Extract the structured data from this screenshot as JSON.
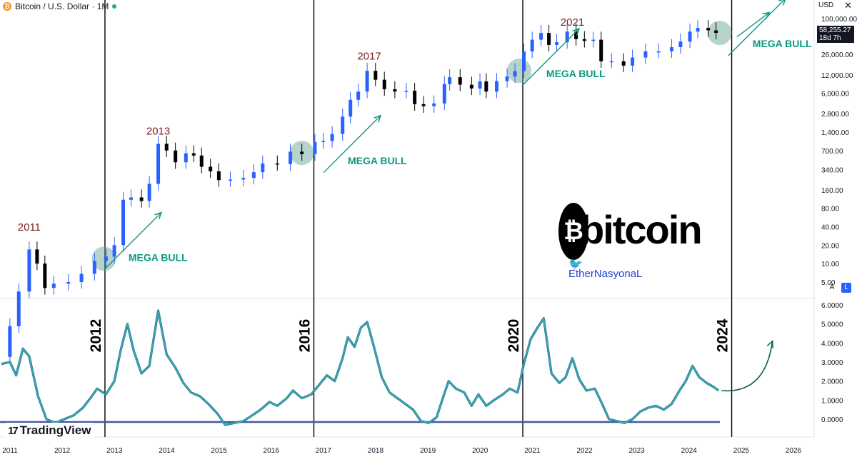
{
  "header": {
    "symbol": "Bitcoin / U.S. Dollar · 1M",
    "coin_glyph": "₿",
    "currency": "USD",
    "close_glyph": "✕",
    "price": "58,255.27",
    "countdown": "18d 7h"
  },
  "scale_buttons": {
    "auto": "A",
    "log": "L"
  },
  "branding": {
    "tradingview": "TradingView",
    "tradingview_mark": "17",
    "bitcoin_glyph": "₿",
    "bitcoin_word": "bitcoin",
    "twitter_glyph": "🐦",
    "author": "EtherNasyonaL"
  },
  "colors": {
    "up": "#2962ff",
    "down": "#000000",
    "annotation_green": "#089981",
    "year_label": "#7b1f24",
    "oscillator": "#3aa6b4",
    "zero_line": "#4457a6",
    "circle_fill": "#5f9f8f"
  },
  "chart_data": {
    "type": "candlestick",
    "price_axis": {
      "scale": "log",
      "ticks": [
        "100,000.00",
        "58,255.27",
        "26,000.00",
        "12,000.00",
        "6,000.00",
        "2,800.00",
        "1,400.00",
        "700.00",
        "340.00",
        "160.00",
        "80.00",
        "40.00",
        "20.00",
        "10.00",
        "5.00"
      ]
    },
    "oscillator_axis": {
      "ticks": [
        "6.0000",
        "5.0000",
        "4.0000",
        "3.0000",
        "2.0000",
        "1.0000",
        "0.0000"
      ],
      "ylim": [
        0,
        6
      ]
    },
    "x_axis": {
      "ticks": [
        "2011",
        "2012",
        "2013",
        "2014",
        "2015",
        "2016",
        "2017",
        "2018",
        "2019",
        "2020",
        "2021",
        "2022",
        "2023",
        "2024",
        "2025",
        "2026"
      ]
    },
    "halving_lines": [
      "2012",
      "2016",
      "2020",
      "2024"
    ],
    "peak_labels": [
      {
        "label": "2011",
        "date": 2011.45,
        "price": 31
      },
      {
        "label": "2013",
        "date": 2013.92,
        "price": 1150
      },
      {
        "label": "2017",
        "date": 2017.96,
        "price": 19000
      },
      {
        "label": "2021",
        "date": 2021.85,
        "price": 68000
      }
    ],
    "annotations": [
      {
        "text": "MEGA BULL",
        "date": 2013.35,
        "price": 11
      },
      {
        "text": "MEGA BULL",
        "date": 2017.55,
        "price": 420
      },
      {
        "text": "MEGA BULL",
        "date": 2021.35,
        "price": 11000
      },
      {
        "text": "MEGA BULL",
        "date": 2025.3,
        "price": 34000
      }
    ],
    "circles": [
      {
        "date": 2012.88,
        "price": 12
      },
      {
        "date": 2016.67,
        "price": 640
      },
      {
        "date": 2020.83,
        "price": 14000
      },
      {
        "date": 2024.67,
        "price": 58000
      }
    ],
    "price_series": [
      {
        "date": 2010.92,
        "price": 0.3
      },
      {
        "date": 2011.08,
        "price": 0.95
      },
      {
        "date": 2011.25,
        "price": 3.5
      },
      {
        "date": 2011.45,
        "price": 17
      },
      {
        "date": 2011.6,
        "price": 10
      },
      {
        "date": 2011.75,
        "price": 4
      },
      {
        "date": 2011.92,
        "price": 4.7
      },
      {
        "date": 2012.2,
        "price": 5
      },
      {
        "date": 2012.45,
        "price": 6.8
      },
      {
        "date": 2012.7,
        "price": 11
      },
      {
        "date": 2012.92,
        "price": 13
      },
      {
        "date": 2013.08,
        "price": 20
      },
      {
        "date": 2013.25,
        "price": 110
      },
      {
        "date": 2013.4,
        "price": 120
      },
      {
        "date": 2013.6,
        "price": 105
      },
      {
        "date": 2013.75,
        "price": 200
      },
      {
        "date": 2013.92,
        "price": 900
      },
      {
        "date": 2014.08,
        "price": 700
      },
      {
        "date": 2014.25,
        "price": 450
      },
      {
        "date": 2014.45,
        "price": 630
      },
      {
        "date": 2014.6,
        "price": 580
      },
      {
        "date": 2014.75,
        "price": 380
      },
      {
        "date": 2014.92,
        "price": 320
      },
      {
        "date": 2015.08,
        "price": 230
      },
      {
        "date": 2015.3,
        "price": 235
      },
      {
        "date": 2015.55,
        "price": 250
      },
      {
        "date": 2015.75,
        "price": 310
      },
      {
        "date": 2015.92,
        "price": 430
      },
      {
        "date": 2016.2,
        "price": 420
      },
      {
        "date": 2016.45,
        "price": 670
      },
      {
        "date": 2016.67,
        "price": 610
      },
      {
        "date": 2016.92,
        "price": 960
      },
      {
        "date": 2017.08,
        "price": 1000
      },
      {
        "date": 2017.25,
        "price": 1300
      },
      {
        "date": 2017.45,
        "price": 2500
      },
      {
        "date": 2017.6,
        "price": 4700
      },
      {
        "date": 2017.75,
        "price": 6400
      },
      {
        "date": 2017.92,
        "price": 14000
      },
      {
        "date": 2018.08,
        "price": 10000
      },
      {
        "date": 2018.25,
        "price": 7000
      },
      {
        "date": 2018.45,
        "price": 6400
      },
      {
        "date": 2018.67,
        "price": 6600
      },
      {
        "date": 2018.83,
        "price": 4000
      },
      {
        "date": 2019.0,
        "price": 3700
      },
      {
        "date": 2019.2,
        "price": 4100
      },
      {
        "date": 2019.4,
        "price": 8500
      },
      {
        "date": 2019.5,
        "price": 11000
      },
      {
        "date": 2019.7,
        "price": 8300
      },
      {
        "date": 2019.92,
        "price": 7200
      },
      {
        "date": 2020.08,
        "price": 9400
      },
      {
        "date": 2020.2,
        "price": 6400
      },
      {
        "date": 2020.4,
        "price": 9500
      },
      {
        "date": 2020.6,
        "price": 11300
      },
      {
        "date": 2020.75,
        "price": 13800
      },
      {
        "date": 2020.92,
        "price": 29000
      },
      {
        "date": 2021.08,
        "price": 45000
      },
      {
        "date": 2021.25,
        "price": 58000
      },
      {
        "date": 2021.4,
        "price": 37000
      },
      {
        "date": 2021.55,
        "price": 41000
      },
      {
        "date": 2021.75,
        "price": 61000
      },
      {
        "date": 2021.92,
        "price": 46000
      },
      {
        "date": 2022.08,
        "price": 43000
      },
      {
        "date": 2022.25,
        "price": 45000
      },
      {
        "date": 2022.4,
        "price": 20000
      },
      {
        "date": 2022.6,
        "price": 20000
      },
      {
        "date": 2022.83,
        "price": 17000
      },
      {
        "date": 2023.0,
        "price": 23000
      },
      {
        "date": 2023.25,
        "price": 29000
      },
      {
        "date": 2023.5,
        "price": 29000
      },
      {
        "date": 2023.75,
        "price": 34000
      },
      {
        "date": 2023.92,
        "price": 42000
      },
      {
        "date": 2024.1,
        "price": 61000
      },
      {
        "date": 2024.25,
        "price": 70000
      },
      {
        "date": 2024.45,
        "price": 64000
      },
      {
        "date": 2024.6,
        "price": 58255
      }
    ],
    "oscillator_series": [
      {
        "date": 2010.92,
        "value": 2.9
      },
      {
        "date": 2011.08,
        "value": 3.0
      },
      {
        "date": 2011.2,
        "value": 2.3
      },
      {
        "date": 2011.33,
        "value": 3.7
      },
      {
        "date": 2011.45,
        "value": 3.3
      },
      {
        "date": 2011.62,
        "value": 1.2
      },
      {
        "date": 2011.78,
        "value": 0.0
      },
      {
        "date": 2011.95,
        "value": -0.2
      },
      {
        "date": 2012.12,
        "value": 0.0
      },
      {
        "date": 2012.3,
        "value": 0.2
      },
      {
        "date": 2012.48,
        "value": 0.6
      },
      {
        "date": 2012.62,
        "value": 1.1
      },
      {
        "date": 2012.75,
        "value": 1.6
      },
      {
        "date": 2012.92,
        "value": 1.3
      },
      {
        "date": 2013.08,
        "value": 2.0
      },
      {
        "date": 2013.2,
        "value": 3.6
      },
      {
        "date": 2013.33,
        "value": 5.0
      },
      {
        "date": 2013.45,
        "value": 3.6
      },
      {
        "date": 2013.6,
        "value": 2.4
      },
      {
        "date": 2013.75,
        "value": 2.8
      },
      {
        "date": 2013.92,
        "value": 5.7
      },
      {
        "date": 2014.08,
        "value": 3.4
      },
      {
        "date": 2014.25,
        "value": 2.7
      },
      {
        "date": 2014.4,
        "value": 1.9
      },
      {
        "date": 2014.55,
        "value": 1.4
      },
      {
        "date": 2014.72,
        "value": 1.2
      },
      {
        "date": 2014.88,
        "value": 0.8
      },
      {
        "date": 2015.05,
        "value": 0.3
      },
      {
        "date": 2015.2,
        "value": -0.3
      },
      {
        "date": 2015.38,
        "value": -0.2
      },
      {
        "date": 2015.55,
        "value": -0.1
      },
      {
        "date": 2015.72,
        "value": 0.2
      },
      {
        "date": 2015.88,
        "value": 0.5
      },
      {
        "date": 2016.05,
        "value": 0.9
      },
      {
        "date": 2016.2,
        "value": 0.7
      },
      {
        "date": 2016.38,
        "value": 1.1
      },
      {
        "date": 2016.5,
        "value": 1.5
      },
      {
        "date": 2016.67,
        "value": 1.1
      },
      {
        "date": 2016.85,
        "value": 1.3
      },
      {
        "date": 2017.0,
        "value": 1.8
      },
      {
        "date": 2017.15,
        "value": 2.3
      },
      {
        "date": 2017.3,
        "value": 2.0
      },
      {
        "date": 2017.45,
        "value": 3.2
      },
      {
        "date": 2017.55,
        "value": 4.3
      },
      {
        "date": 2017.68,
        "value": 3.8
      },
      {
        "date": 2017.8,
        "value": 4.8
      },
      {
        "date": 2017.92,
        "value": 5.1
      },
      {
        "date": 2018.05,
        "value": 3.8
      },
      {
        "date": 2018.2,
        "value": 2.2
      },
      {
        "date": 2018.35,
        "value": 1.4
      },
      {
        "date": 2018.5,
        "value": 1.1
      },
      {
        "date": 2018.65,
        "value": 0.8
      },
      {
        "date": 2018.8,
        "value": 0.5
      },
      {
        "date": 2018.95,
        "value": -0.1
      },
      {
        "date": 2019.1,
        "value": -0.2
      },
      {
        "date": 2019.25,
        "value": 0.1
      },
      {
        "date": 2019.38,
        "value": 1.2
      },
      {
        "date": 2019.48,
        "value": 2.0
      },
      {
        "date": 2019.62,
        "value": 1.6
      },
      {
        "date": 2019.78,
        "value": 1.4
      },
      {
        "date": 2019.92,
        "value": 0.7
      },
      {
        "date": 2020.05,
        "value": 1.3
      },
      {
        "date": 2020.2,
        "value": 0.7
      },
      {
        "date": 2020.35,
        "value": 1.0
      },
      {
        "date": 2020.52,
        "value": 1.3
      },
      {
        "date": 2020.65,
        "value": 1.6
      },
      {
        "date": 2020.8,
        "value": 1.4
      },
      {
        "date": 2020.92,
        "value": 2.9
      },
      {
        "date": 2021.05,
        "value": 4.2
      },
      {
        "date": 2021.18,
        "value": 4.8
      },
      {
        "date": 2021.3,
        "value": 5.3
      },
      {
        "date": 2021.45,
        "value": 2.4
      },
      {
        "date": 2021.6,
        "value": 1.9
      },
      {
        "date": 2021.72,
        "value": 2.2
      },
      {
        "date": 2021.85,
        "value": 3.2
      },
      {
        "date": 2021.98,
        "value": 2.1
      },
      {
        "date": 2022.12,
        "value": 1.5
      },
      {
        "date": 2022.28,
        "value": 1.6
      },
      {
        "date": 2022.42,
        "value": 0.8
      },
      {
        "date": 2022.55,
        "value": 0.0
      },
      {
        "date": 2022.7,
        "value": -0.1
      },
      {
        "date": 2022.85,
        "value": -0.2
      },
      {
        "date": 2023.0,
        "value": 0.0
      },
      {
        "date": 2023.15,
        "value": 0.4
      },
      {
        "date": 2023.3,
        "value": 0.6
      },
      {
        "date": 2023.45,
        "value": 0.7
      },
      {
        "date": 2023.6,
        "value": 0.5
      },
      {
        "date": 2023.75,
        "value": 0.8
      },
      {
        "date": 2023.9,
        "value": 1.5
      },
      {
        "date": 2024.02,
        "value": 2.0
      },
      {
        "date": 2024.15,
        "value": 2.8
      },
      {
        "date": 2024.28,
        "value": 2.2
      },
      {
        "date": 2024.42,
        "value": 1.9
      },
      {
        "date": 2024.55,
        "value": 1.7
      },
      {
        "date": 2024.65,
        "value": 1.5
      }
    ],
    "projection": [
      {
        "from_date": 2025.0,
        "from_price": 50000,
        "to_date": 2025.62,
        "to_price": 125000
      },
      {
        "from_date": 2024.65,
        "from_value": 1.5,
        "to_date": 2025.68,
        "to_value": 4.1
      }
    ]
  }
}
